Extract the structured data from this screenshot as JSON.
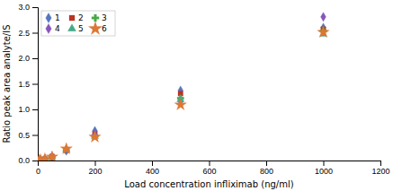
{
  "chart_data": {
    "type": "scatter",
    "xlabel": "Load concentration infliximab (ng/ml)",
    "ylabel": "Ratio peak area analyte/IS",
    "x": [
      5,
      10,
      25,
      50,
      100,
      200,
      500,
      1000
    ],
    "series": [
      {
        "name": "1",
        "marker": "diamond",
        "color": "#5577bb",
        "values": [
          0.005,
          0.01,
          0.03,
          0.07,
          0.19,
          0.58,
          1.37,
          2.6
        ]
      },
      {
        "name": "2",
        "marker": "square",
        "color": "#bb3322",
        "values": [
          0.005,
          0.01,
          0.03,
          0.08,
          0.2,
          0.52,
          1.31,
          2.57
        ]
      },
      {
        "name": "3",
        "marker": "plus",
        "color": "#44aa44",
        "values": [
          0.005,
          0.01,
          0.03,
          0.07,
          0.2,
          0.48,
          1.22,
          2.54
        ]
      },
      {
        "name": "4",
        "marker": "diamond",
        "color": "#8855bb",
        "values": [
          0.005,
          0.01,
          0.03,
          0.08,
          0.22,
          0.51,
          1.16,
          2.81
        ]
      },
      {
        "name": "5",
        "marker": "triangle",
        "color": "#44aa88",
        "values": [
          0.005,
          0.01,
          0.03,
          0.07,
          0.21,
          0.47,
          1.19,
          2.47
        ]
      },
      {
        "name": "6",
        "marker": "star",
        "color": "#dd7733",
        "values": [
          0.005,
          0.01,
          0.03,
          0.07,
          0.23,
          0.46,
          1.09,
          2.51
        ]
      }
    ],
    "xlim": [
      0,
      1200
    ],
    "ylim": [
      0.0,
      3.0
    ],
    "xticks": [
      0,
      200,
      400,
      600,
      800,
      1000,
      1200
    ],
    "yticks": [
      {
        "value": 0,
        "label": "0.0"
      },
      0.5,
      {
        "value": 1,
        "label": "1.0"
      },
      1.5,
      {
        "value": 2,
        "label": "2.0"
      },
      2.5,
      {
        "value": 3,
        "label": "3.0"
      }
    ],
    "grid": false,
    "legend": "upper left"
  }
}
